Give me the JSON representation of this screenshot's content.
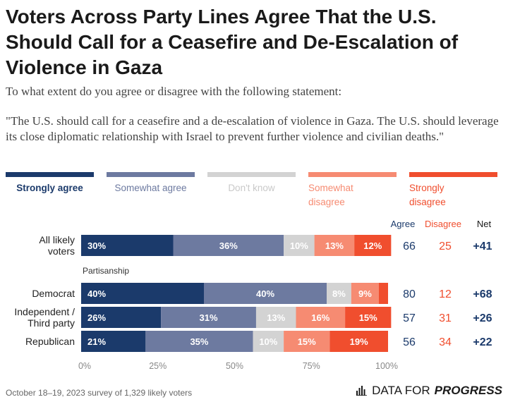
{
  "header": {
    "title": "Voters Across Party Lines Agree That the U.S. Should Call for a Ceasefire and De-Escalation of Violence in Gaza",
    "question": "To what extent do you agree or disagree with the following statement:",
    "statement": "\"The U.S. should call for a ceasefire and a de-escalation of violence in Gaza. The U.S. should leverage its close diplomatic relationship with Israel to prevent further violence and civilian deaths.\""
  },
  "footer": {
    "note": "October 18–19, 2023 survey of 1,329 likely voters",
    "brand_prefix": "DATA FOR",
    "brand_emphasis": "PROGRESS",
    "brand_icon": "bar-chart-icon"
  },
  "chart_data": {
    "type": "bar",
    "orientation": "horizontal",
    "stacked": true,
    "categories": [
      "All likely voters",
      "Democrat",
      "Independent / Third party",
      "Republican"
    ],
    "category_label_lines": [
      [
        "All likely",
        "voters"
      ],
      [
        "Democrat"
      ],
      [
        "Independent /",
        "Third party"
      ],
      [
        "Republican"
      ]
    ],
    "group_label": "Partisanship",
    "series": [
      {
        "name": "Strongly agree",
        "color": "#1b3a6b",
        "label_color": "#1b3a6b",
        "values": [
          30,
          40,
          26,
          21
        ]
      },
      {
        "name": "Somewhat agree",
        "color": "#6d7aa0",
        "label_color": "#6d7aa0",
        "values": [
          36,
          40,
          31,
          35
        ]
      },
      {
        "name": "Don't know",
        "color": "#d3d3d3",
        "label_color": "#c9c9c9",
        "values": [
          10,
          8,
          13,
          10
        ]
      },
      {
        "name": "Somewhat disagree",
        "color": "#f68b72",
        "label_color": "#f68b72",
        "values": [
          13,
          9,
          16,
          15
        ]
      },
      {
        "name": "Strongly disagree",
        "color": "#f04e2e",
        "label_color": "#f04e2e",
        "values": [
          12,
          3,
          15,
          19
        ]
      }
    ],
    "bar_labels": [
      [
        "30%",
        "36%",
        "10%",
        "13%",
        "12%"
      ],
      [
        "40%",
        "40%",
        "8%",
        "9%",
        ""
      ],
      [
        "26%",
        "31%",
        "13%",
        "16%",
        "15%"
      ],
      [
        "21%",
        "35%",
        "10%",
        "15%",
        "19%"
      ]
    ],
    "summary_columns": {
      "headers": [
        "Agree",
        "Disagree",
        "Net"
      ],
      "header_colors": [
        "#1b3a6b",
        "#f04e2e",
        "#1a1a1a"
      ],
      "agree": [
        66,
        80,
        57,
        56
      ],
      "disagree": [
        25,
        12,
        31,
        34
      ],
      "net": [
        "+41",
        "+68",
        "+26",
        "+22"
      ]
    },
    "x_ticks": [
      "0%",
      "25%",
      "50%",
      "75%",
      "100%"
    ],
    "xlim": [
      0,
      100
    ],
    "legend_position": "top"
  }
}
